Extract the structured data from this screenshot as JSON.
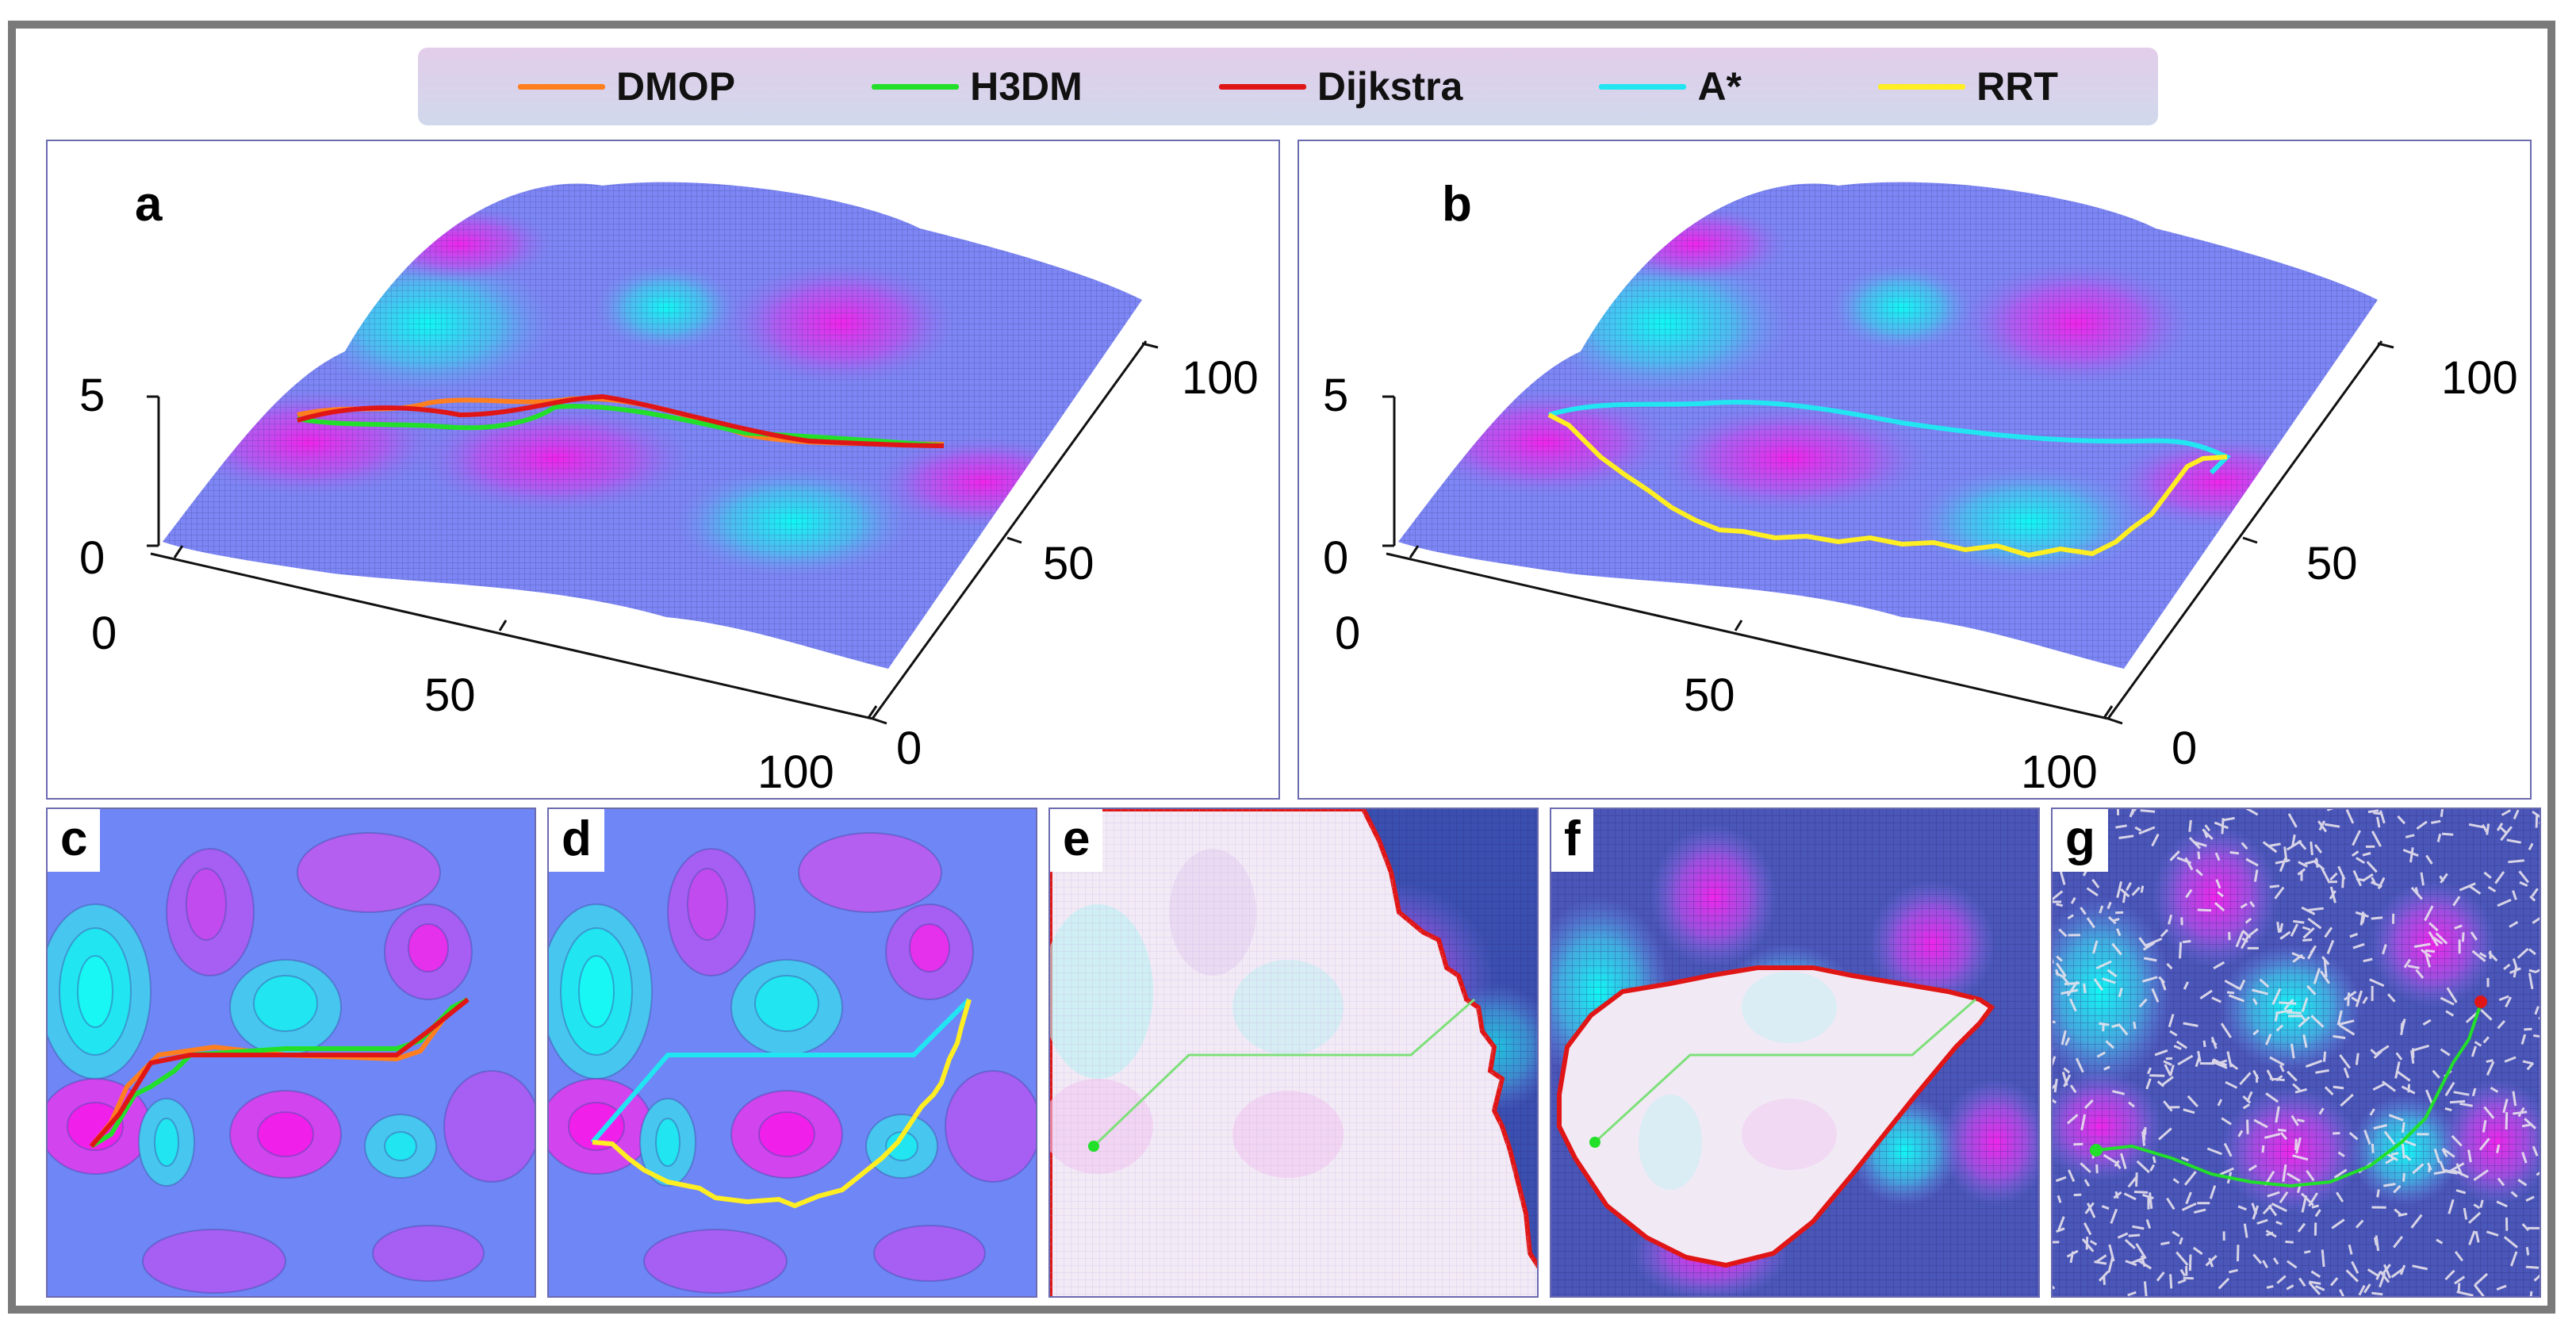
{
  "legend": [
    {
      "label": "DMOP",
      "color": "#ff7f1f"
    },
    {
      "label": "H3DM",
      "color": "#22e02a"
    },
    {
      "label": "Dijkstra",
      "color": "#e01616"
    },
    {
      "label": "A*",
      "color": "#22e5f2"
    },
    {
      "label": "RRT",
      "color": "#ffee22"
    }
  ],
  "panels": {
    "a": "a",
    "b": "b",
    "c": "c",
    "d": "d",
    "e": "e",
    "f": "f",
    "g": "g"
  },
  "axes3d": {
    "z_ticks": [
      "5",
      "0"
    ],
    "x_ticks": [
      "0",
      "50",
      "100"
    ],
    "y_ticks": [
      "0",
      "50",
      "100"
    ]
  },
  "colors": {
    "magenta": "#e23ce8",
    "cyan": "#29e6ee",
    "blue": "#6f86f6",
    "frame": "#7a7a7a"
  },
  "chart_data": [
    {
      "type": "surface",
      "panel": "a",
      "series": [
        "DMOP",
        "H3DM",
        "Dijkstra"
      ],
      "zlim": [
        0,
        5
      ],
      "xlim": [
        0,
        100
      ],
      "ylim": [
        0,
        100
      ]
    },
    {
      "type": "surface",
      "panel": "b",
      "series": [
        "A*",
        "RRT"
      ],
      "zlim": [
        0,
        5
      ],
      "xlim": [
        0,
        100
      ],
      "ylim": [
        0,
        100
      ]
    },
    {
      "type": "contour",
      "panel": "c",
      "series": [
        "DMOP",
        "H3DM",
        "Dijkstra"
      ]
    },
    {
      "type": "contour",
      "panel": "d",
      "series": [
        "A*",
        "RRT"
      ]
    },
    {
      "type": "heatmap",
      "panel": "e",
      "series": [
        "Dijkstra"
      ]
    },
    {
      "type": "heatmap",
      "panel": "f",
      "series": [
        "A*"
      ]
    },
    {
      "type": "heatmap",
      "panel": "g",
      "series": [
        "RRT"
      ]
    }
  ]
}
